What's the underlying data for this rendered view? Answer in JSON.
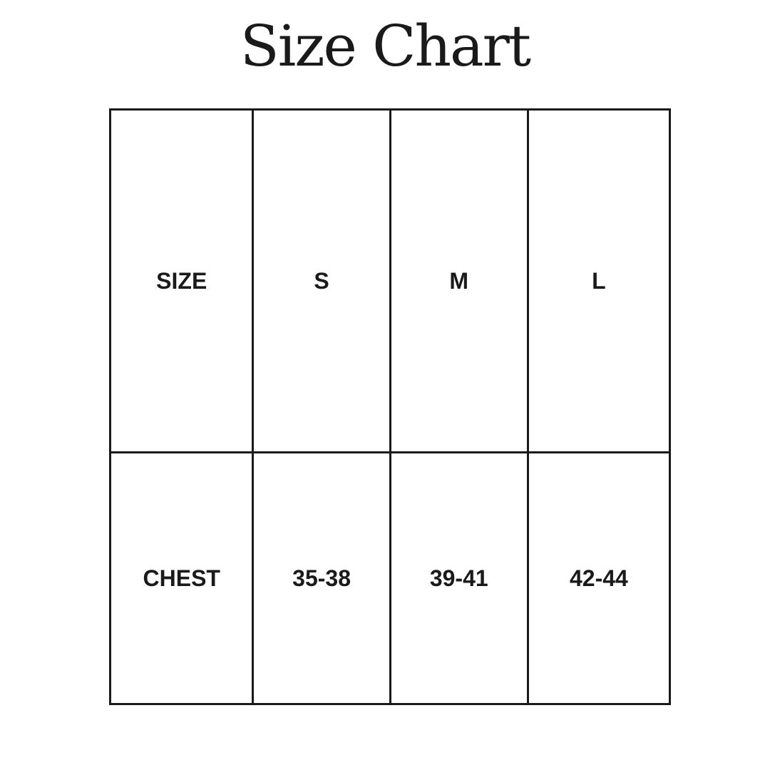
{
  "title": "Size Chart",
  "table": {
    "header": [
      "SIZE",
      "S",
      "M",
      "L"
    ],
    "rows": [
      [
        "CHEST",
        "35-38",
        "39-41",
        "42-44"
      ]
    ]
  }
}
